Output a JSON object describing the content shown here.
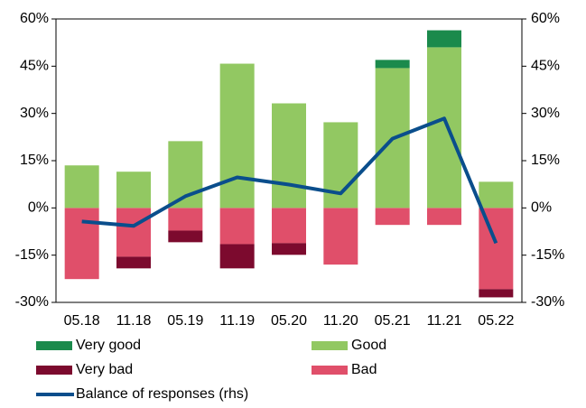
{
  "chart_data": {
    "type": "bar",
    "stacked": true,
    "categories": [
      "05.18",
      "11.18",
      "05.19",
      "11.19",
      "05.20",
      "11.20",
      "05.21",
      "11.21",
      "05.22"
    ],
    "series": [
      {
        "name": "Very good",
        "color": "#1b8a4c",
        "values": [
          0,
          0,
          0,
          0,
          0,
          0,
          2.6,
          5.4,
          0
        ]
      },
      {
        "name": "Good",
        "color": "#92c862",
        "values": [
          13.5,
          11.5,
          21.2,
          45.8,
          33.2,
          27.2,
          44.4,
          51,
          8.3
        ]
      },
      {
        "name": "Very bad",
        "color": "#7c0a2e",
        "values": [
          0,
          -3.7,
          -3.7,
          -7.7,
          -3.7,
          0,
          0,
          0,
          -2.6
        ]
      },
      {
        "name": "Bad",
        "color": "#e04f6a",
        "values": [
          -22.6,
          -15.5,
          -7.2,
          -11.5,
          -11.2,
          -18,
          -5.4,
          -5.4,
          -25.8
        ]
      },
      {
        "name": "Balance of responses (rhs)",
        "color": "#0a4e8c",
        "type": "line",
        "axis": "y2",
        "values": [
          -4.3,
          -5.7,
          3.7,
          9.7,
          7.4,
          4.6,
          22,
          28.4,
          -11.2
        ]
      }
    ],
    "ylim": [
      -30,
      60
    ],
    "yticks": [
      {
        "value": -30,
        "label": "-30%"
      },
      {
        "value": -15,
        "label": "-15%"
      },
      {
        "value": 0,
        "label": "0%"
      },
      {
        "value": 15,
        "label": "15%"
      },
      {
        "value": 30,
        "label": "30%"
      },
      {
        "value": 45,
        "label": "45%"
      },
      {
        "value": 60,
        "label": "60%"
      }
    ],
    "y2lim": [
      -30,
      60
    ],
    "y2ticks": [
      {
        "value": -30,
        "label": "-30%"
      },
      {
        "value": -15,
        "label": "-15%"
      },
      {
        "value": 0,
        "label": "0%"
      },
      {
        "value": 15,
        "label": "15%"
      },
      {
        "value": 30,
        "label": "30%"
      },
      {
        "value": 45,
        "label": "45%"
      },
      {
        "value": 60,
        "label": "60%"
      }
    ]
  }
}
